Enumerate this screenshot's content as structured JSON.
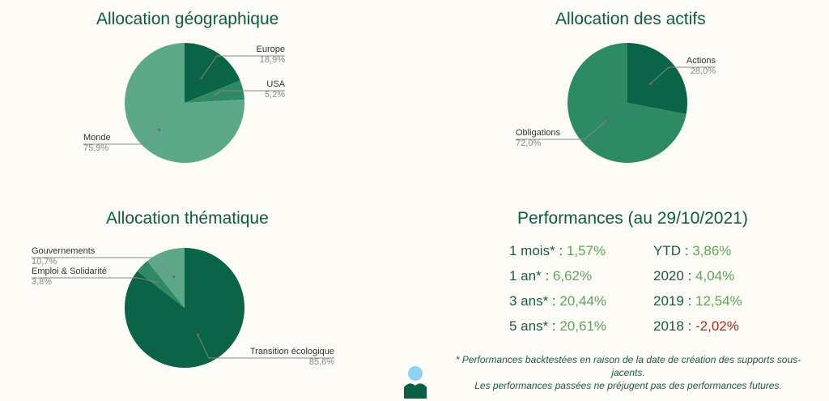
{
  "colors": {
    "dark": "#0b6448",
    "mid": "#2e8a65",
    "light": "#5ca888",
    "muted": "#4c9c7c",
    "title": "#0c5c3f",
    "positive": "#5fa35a",
    "negative": "#b3261e"
  },
  "chart_data": [
    {
      "type": "pie",
      "title": "Allocation géographique",
      "slices": [
        {
          "label": "Europe",
          "value_label": "18,9%",
          "value": 18.9
        },
        {
          "label": "USA",
          "value_label": "5,2%",
          "value": 5.2
        },
        {
          "label": "Monde",
          "value_label": "75,9%",
          "value": 75.9
        }
      ]
    },
    {
      "type": "pie",
      "title": "Allocation des actifs",
      "slices": [
        {
          "label": "Actions",
          "value_label": "28,0%",
          "value": 28.0
        },
        {
          "label": "Obligations",
          "value_label": "72,0%",
          "value": 72.0
        }
      ]
    },
    {
      "type": "pie",
      "title": "Allocation thématique",
      "slices": [
        {
          "label": "Transition écologique",
          "value_label": "85,6%",
          "value": 85.6
        },
        {
          "label": "Emploi & Solidarité",
          "value_label": "3,8%",
          "value": 3.8
        },
        {
          "label": "Gouvernements",
          "value_label": "10,7%",
          "value": 10.7
        }
      ]
    }
  ],
  "performance": {
    "title": "Performances (au 29/10/2021)",
    "left": [
      {
        "label": "1 mois* :",
        "value": "1,57%"
      },
      {
        "label": "1 an* :",
        "value": "6,62%"
      },
      {
        "label": "3 ans* :",
        "value": "20,44%"
      },
      {
        "label": "5 ans* :",
        "value": "20,61%"
      }
    ],
    "right": [
      {
        "label": "YTD :",
        "value": "3,86%"
      },
      {
        "label": "2020 :",
        "value": "4,04%"
      },
      {
        "label": "2019 :",
        "value": "12,54%"
      },
      {
        "label": "2018 :",
        "value": "-2,02%"
      }
    ],
    "footnote_line1": "* Performances backtestées en raison de la date de création des supports sous-jacents.",
    "footnote_line2": "Les performances passées ne préjugent pas des performances futures."
  }
}
